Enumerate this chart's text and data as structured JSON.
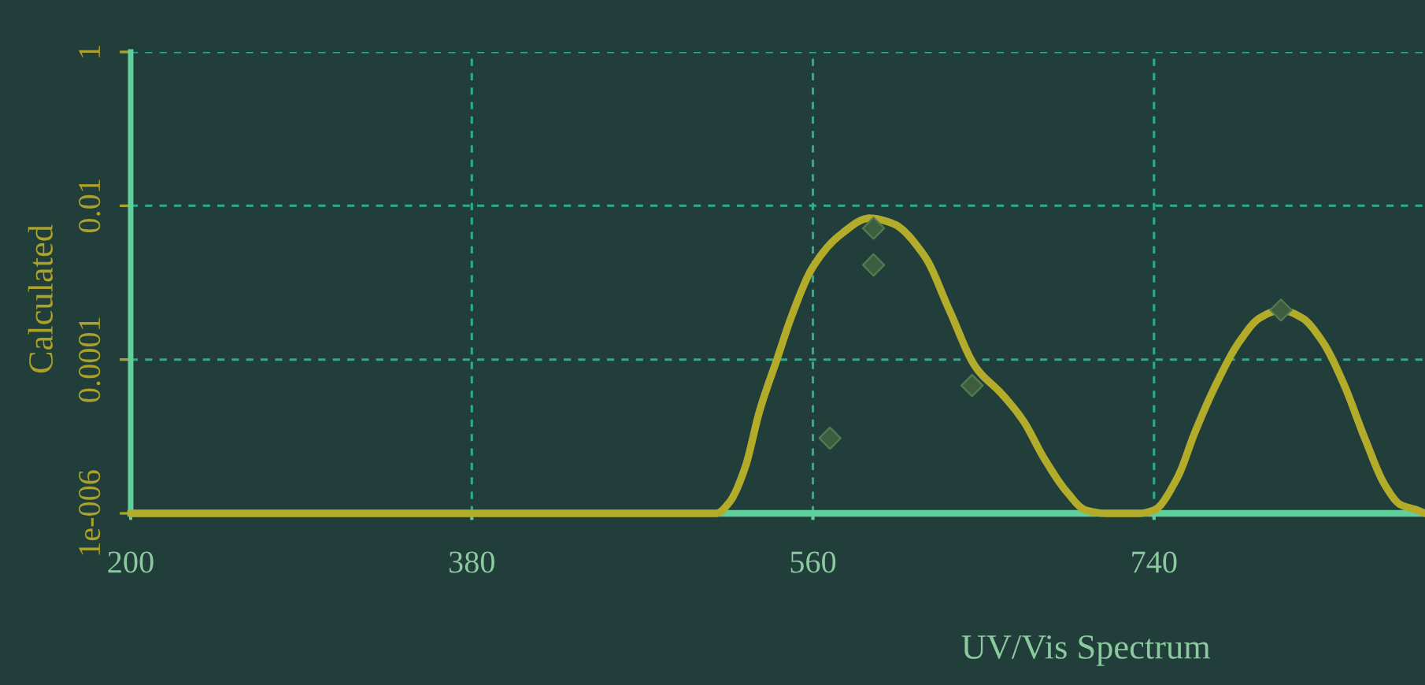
{
  "chart_data": {
    "type": "line",
    "xlabel": "UV/Vis Spectrum",
    "ylabel": "Calculated",
    "log": "y",
    "xlim": [
      200,
      883
    ],
    "ylim": [
      1e-06,
      1
    ],
    "xticks": [
      200,
      380,
      560,
      740
    ],
    "yticks": [
      {
        "value": 1e-06,
        "label": "1e-006"
      },
      0.0001,
      0.01,
      1
    ],
    "grid": true,
    "series": [
      {
        "color": "#b3ab2a",
        "marker": "none",
        "line_style": "solid",
        "x": [
          200,
          509,
          516,
          524,
          532,
          541,
          549,
          560,
          574,
          590,
          602,
          619,
          632,
          646,
          660,
          671,
          682,
          694,
          704,
          715,
          732,
          740,
          752,
          762,
          773,
          785,
          796,
          807,
          818,
          829,
          840,
          851,
          862,
          870,
          879,
          883
        ],
        "values": [
          1e-06,
          1e-06,
          1.4e-06,
          3.8e-06,
          2.2e-05,
          0.0001,
          0.00038,
          0.0016,
          0.0041,
          0.0069,
          0.0059,
          0.0022,
          0.00044,
          7.9e-05,
          3.5e-05,
          1.6e-05,
          5.2e-06,
          1.9e-06,
          1.1e-06,
          1e-06,
          1e-06,
          1.1e-06,
          2.8e-06,
          1.2e-05,
          4.9e-05,
          0.00017,
          0.00035,
          0.00044,
          0.00035,
          0.00017,
          4.9e-05,
          9.8e-06,
          2.3e-06,
          1.3e-06,
          1.1e-06,
          1e-06
        ]
      },
      {
        "type": "scatter",
        "color": "#3c5e3e",
        "marker": "diamond",
        "x": [
          569,
          592,
          592,
          644,
          807
        ],
        "values": [
          9.5e-06,
          0.0017,
          0.0051,
          4.6e-05,
          0.00044
        ]
      }
    ]
  }
}
